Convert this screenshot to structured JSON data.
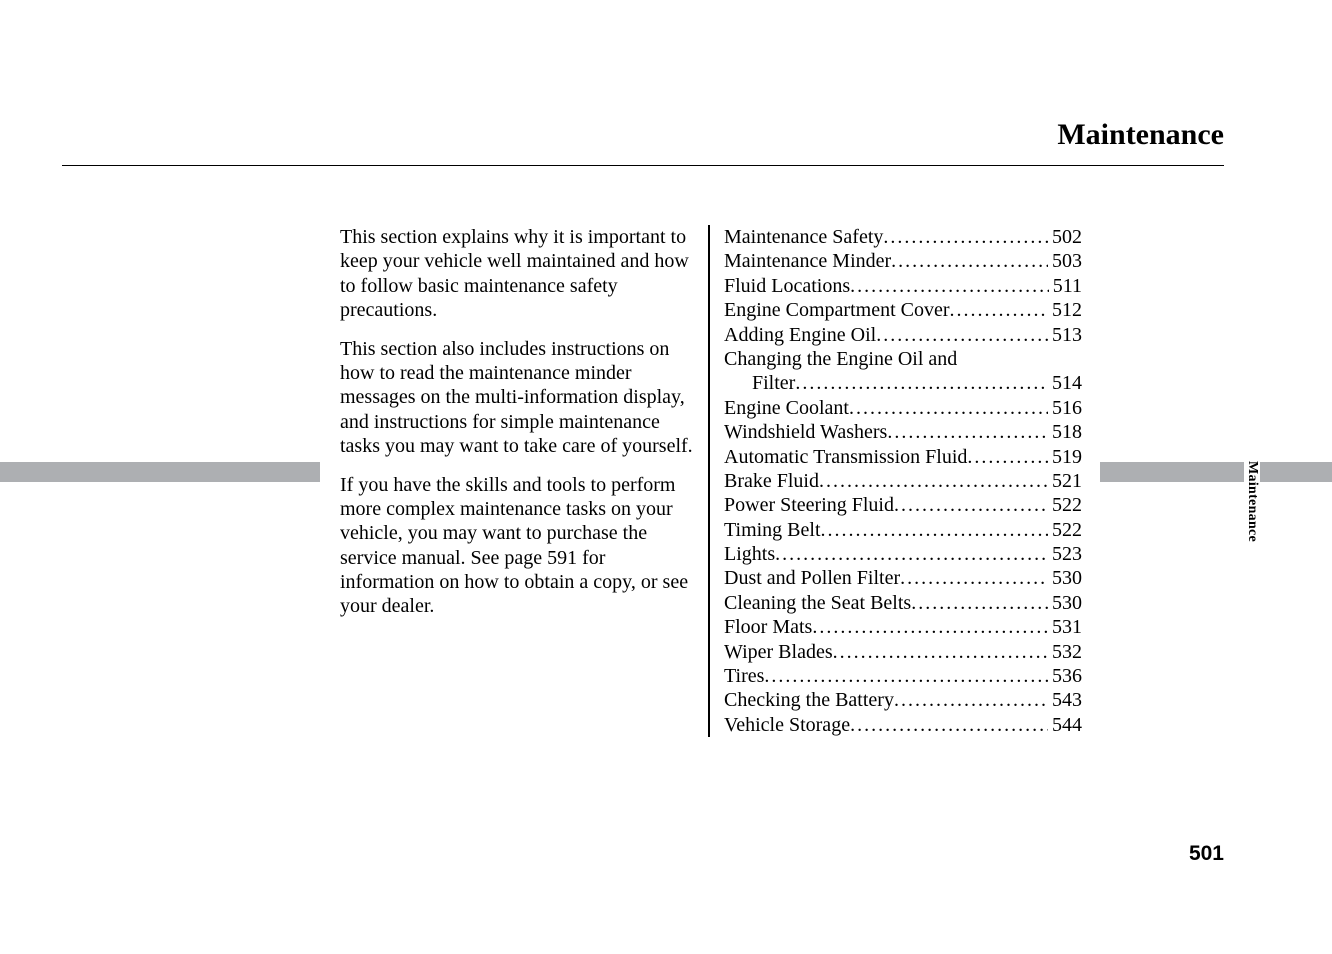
{
  "title": "Maintenance",
  "sideTab": "Maintenance",
  "pageNumber": "501",
  "intro": {
    "p1": "This section explains why it is important to keep your vehicle well maintained and how to follow basic maintenance safety precautions.",
    "p2": "This section also includes instructions on how to read the maintenance minder messages on the multi-information display, and instructions for simple maintenance tasks you may want to take care of yourself.",
    "p3": "If you have the skills and tools to perform more complex maintenance tasks on your vehicle, you may want to purchase the service manual. See page 591 for information on how to obtain a copy, or see your dealer."
  },
  "toc": [
    {
      "label": "Maintenance Safety",
      "page": "502",
      "indent": false
    },
    {
      "label": "Maintenance Minder ",
      "page": "503",
      "indent": false
    },
    {
      "label": "Fluid Locations ",
      "page": "511",
      "indent": false
    },
    {
      "label": "Engine Compartment Cover",
      "page": "512",
      "indent": false
    },
    {
      "label": "Adding Engine Oil ",
      "page": "513",
      "indent": false
    },
    {
      "label": "Changing the Engine Oil and",
      "page": "",
      "indent": false
    },
    {
      "label": "Filter ",
      "page": "514",
      "indent": true
    },
    {
      "label": "Engine Coolant ",
      "page": "516",
      "indent": false
    },
    {
      "label": "Windshield Washers",
      "page": "518",
      "indent": false
    },
    {
      "label": "Automatic Transmission Fluid ",
      "page": "519",
      "indent": false
    },
    {
      "label": "Brake Fluid ",
      "page": "521",
      "indent": false
    },
    {
      "label": "Power Steering Fluid ",
      "page": "522",
      "indent": false
    },
    {
      "label": "Timing Belt ",
      "page": "522",
      "indent": false
    },
    {
      "label": "Lights",
      "page": "523",
      "indent": false
    },
    {
      "label": "Dust and Pollen Filter ",
      "page": "530",
      "indent": false
    },
    {
      "label": "Cleaning the Seat Belts ",
      "page": "530",
      "indent": false
    },
    {
      "label": "Floor Mats ",
      "page": "531",
      "indent": false
    },
    {
      "label": "Wiper Blades ",
      "page": "532",
      "indent": false
    },
    {
      "label": "Tires ",
      "page": "536",
      "indent": false
    },
    {
      "label": "Checking the Battery ",
      "page": "543",
      "indent": false
    },
    {
      "label": "Vehicle Storage ",
      "page": "544",
      "indent": false
    }
  ]
}
